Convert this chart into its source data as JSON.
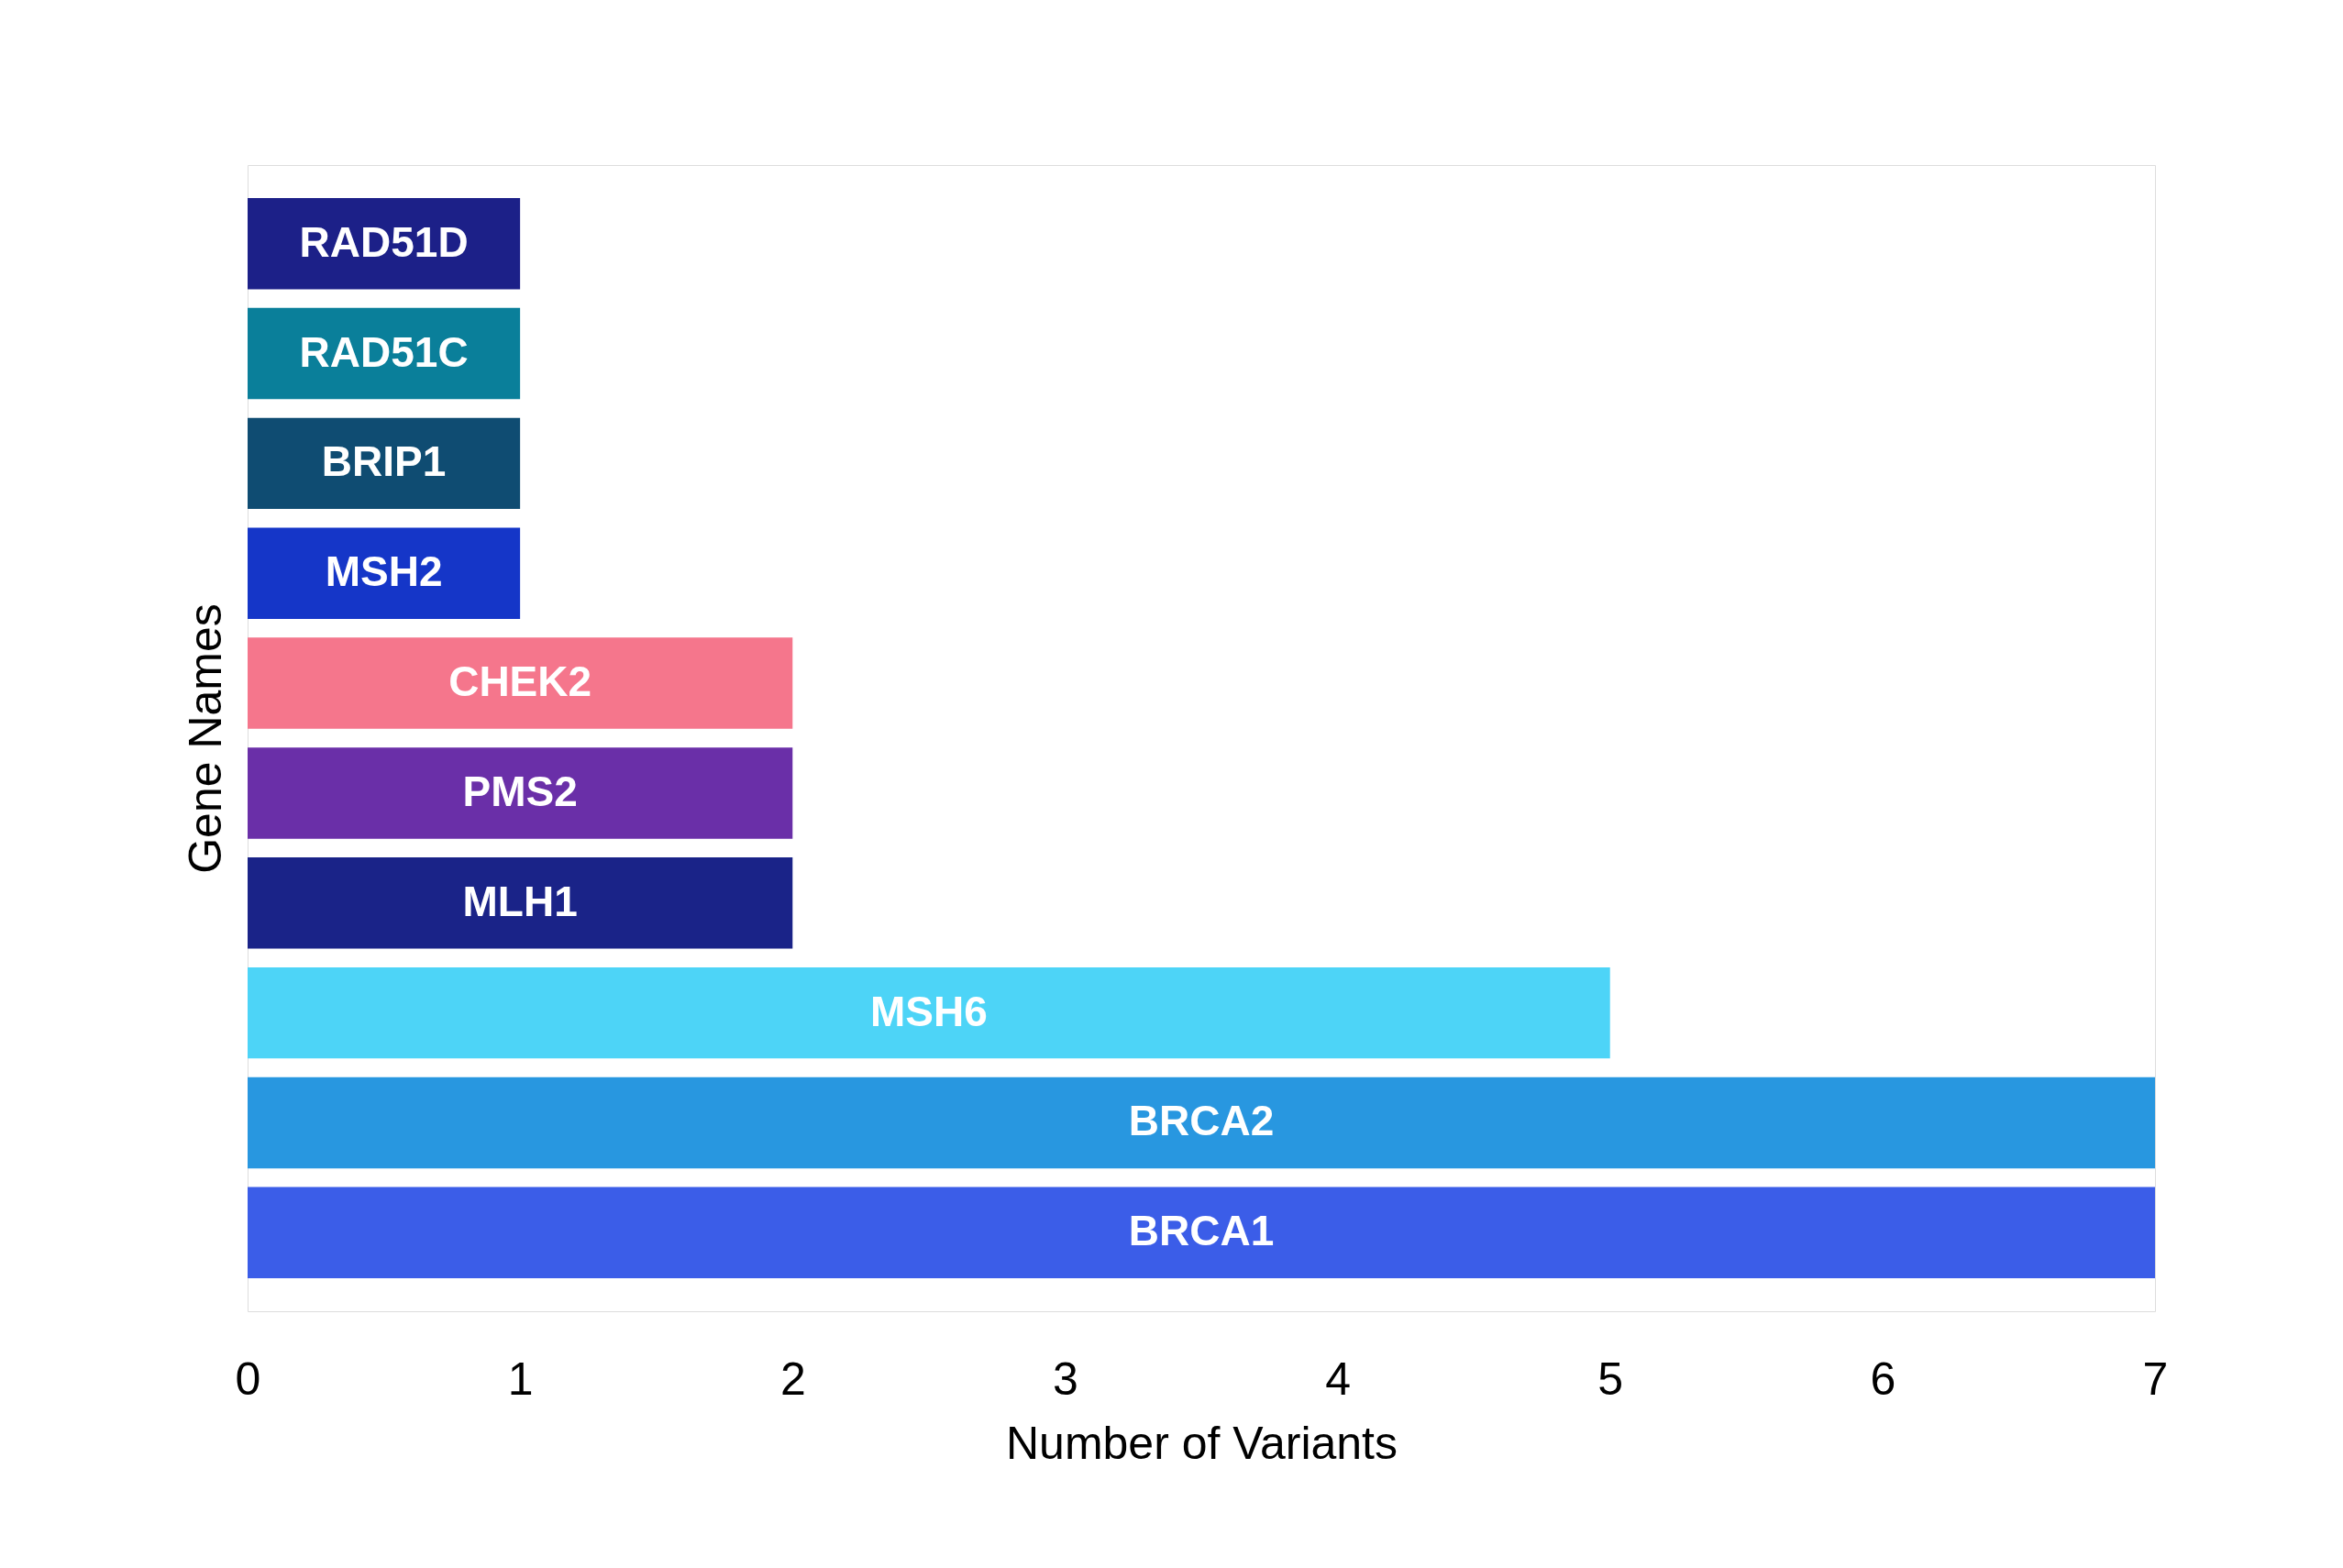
{
  "chart_data": {
    "type": "bar",
    "orientation": "horizontal",
    "xlabel": "Number of Variants",
    "ylabel": "Gene Names",
    "categories": [
      "RAD51D",
      "RAD51C",
      "BRIP1",
      "MSH2",
      "CHEK2",
      "PMS2",
      "MLH1",
      "MSH6",
      "BRCA2",
      "BRCA1"
    ],
    "values": [
      1,
      1,
      1,
      1,
      2,
      2,
      2,
      5,
      7,
      7
    ],
    "colors": [
      "#1c2088",
      "#0a7f9a",
      "#0f4c72",
      "#1536c8",
      "#f5768c",
      "#6a2fa8",
      "#1a2388",
      "#4dd4f7",
      "#2897e0",
      "#3b5de8"
    ],
    "xlim": [
      0,
      7
    ],
    "xticks": [
      0,
      1,
      2,
      3,
      4,
      5,
      6,
      7
    ],
    "grid": false,
    "legend": false,
    "tick_labels": "x"
  }
}
